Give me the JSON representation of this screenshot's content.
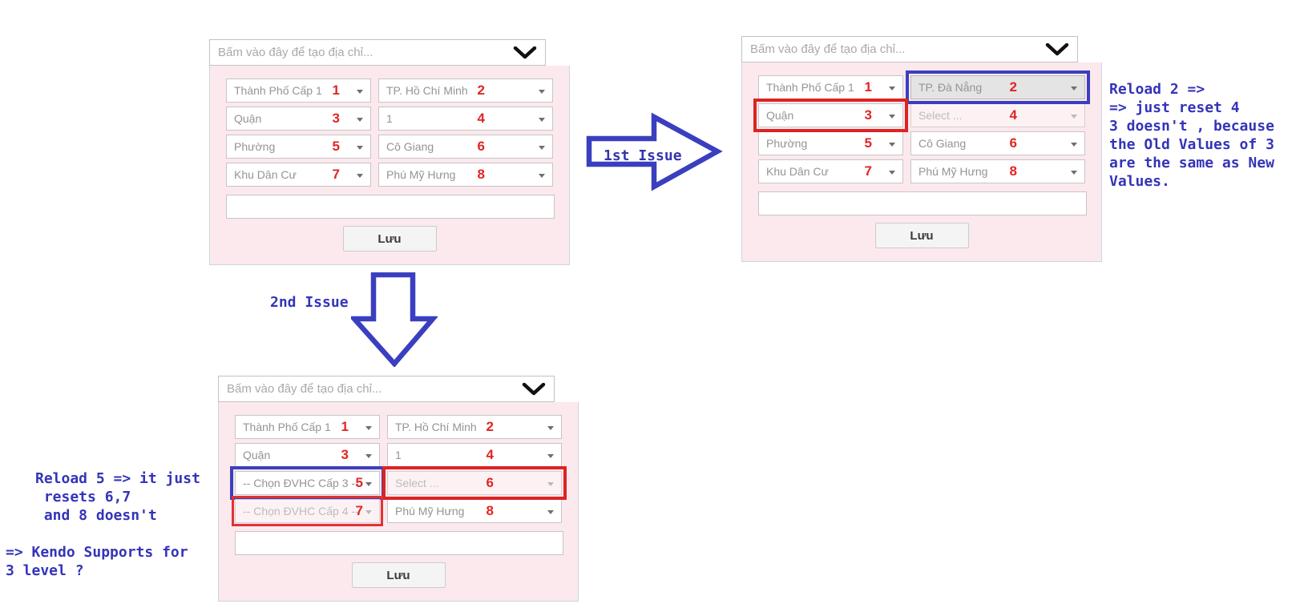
{
  "colors": {
    "panel_pink": "#fce9ed",
    "annotation_red": "#e12424",
    "annotation_blue": "#3a3fc0",
    "note_text_blue": "#3434b8"
  },
  "annotations": {
    "issue1_label": "1st Issue",
    "issue2_label": "2nd Issue",
    "note_right": "Reload 2 =>\n=> just reset 4\n3 doesn't , because\nthe Old Values of 3\nare the same as New\nValues.",
    "note_left_reload": "Reload 5 => it just\n resets 6,7\n and 8 doesn't",
    "note_left_kendo": "=> Kendo Supports for\n3 level ?"
  },
  "panels": [
    {
      "name": "original",
      "header_placeholder": "Bấm vào đây để tạo địa chỉ...",
      "save_label": "Lưu",
      "rows": [
        [
          {
            "label": "Thành Phố Cấp 1",
            "num": "1"
          },
          {
            "label": "TP. Hồ Chí Minh",
            "num": "2"
          }
        ],
        [
          {
            "label": "Quận",
            "num": "3"
          },
          {
            "label": "1",
            "num": "4"
          }
        ],
        [
          {
            "label": "Phường",
            "num": "5"
          },
          {
            "label": "Cô Giang",
            "num": "6"
          }
        ],
        [
          {
            "label": "Khu Dân Cư",
            "num": "7"
          },
          {
            "label": "Phú Mỹ Hưng",
            "num": "8"
          }
        ]
      ]
    },
    {
      "name": "first-issue",
      "header_placeholder": "Bấm vào đây để tạo địa chỉ...",
      "save_label": "Lưu",
      "rows": [
        [
          {
            "label": "Thành Phố Cấp 1",
            "num": "1"
          },
          {
            "label": "TP. Đà Nẵng",
            "num": "2",
            "border": "blue",
            "bg": "gray"
          }
        ],
        [
          {
            "label": "Quận",
            "num": "3",
            "border": "red"
          },
          {
            "label": "Select ...",
            "num": "4",
            "bg": "pink",
            "faded": true
          }
        ],
        [
          {
            "label": "Phường",
            "num": "5"
          },
          {
            "label": "Cô Giang",
            "num": "6"
          }
        ],
        [
          {
            "label": "Khu Dân Cư",
            "num": "7"
          },
          {
            "label": "Phú Mỹ Hưng",
            "num": "8"
          }
        ]
      ]
    },
    {
      "name": "second-issue",
      "header_placeholder": "Bấm vào đây để tạo địa chỉ...",
      "save_label": "Lưu",
      "rows": [
        [
          {
            "label": "Thành Phố Cấp 1",
            "num": "1"
          },
          {
            "label": "TP. Hồ Chí Minh",
            "num": "2"
          }
        ],
        [
          {
            "label": "Quận",
            "num": "3"
          },
          {
            "label": "1",
            "num": "4"
          }
        ],
        [
          {
            "label": "-- Chọn ĐVHC Cấp 3 --",
            "num": "5",
            "border": "blue",
            "num_tight": true
          },
          {
            "label": "Select ...",
            "num": "6",
            "border": "red",
            "bg": "pink",
            "faded": true
          }
        ],
        [
          {
            "label": "-- Chọn ĐVHC Cấp 4 --",
            "num": "7",
            "border": "red-thin",
            "bg": "pink",
            "faded": true,
            "num_tight": true
          },
          {
            "label": "Phú Mỹ Hưng",
            "num": "8"
          }
        ]
      ]
    }
  ]
}
